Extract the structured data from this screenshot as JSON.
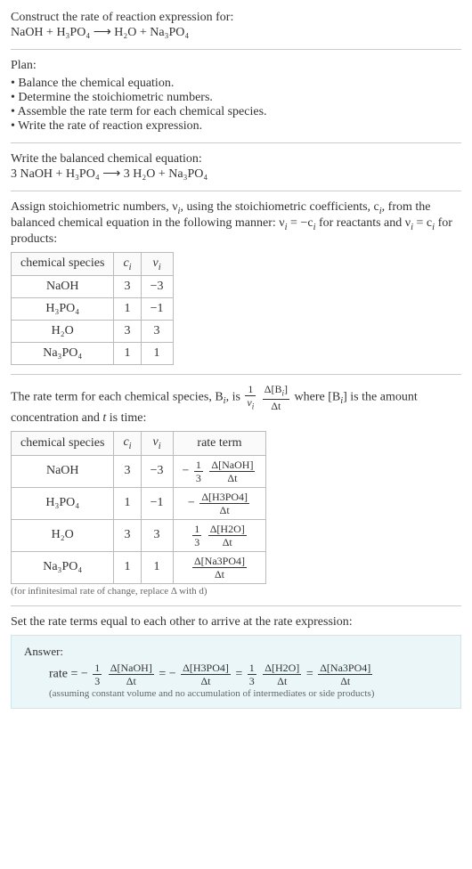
{
  "prompt": {
    "title": "Construct the rate of reaction expression for:",
    "equation": "NaOH + H₃PO₄  ⟶  H₂O + Na₃PO₄"
  },
  "plan": {
    "title": "Plan:",
    "items": [
      "Balance the chemical equation.",
      "Determine the stoichiometric numbers.",
      "Assemble the rate term for each chemical species.",
      "Write the rate of reaction expression."
    ]
  },
  "balanced": {
    "title": "Write the balanced chemical equation:",
    "equation": "3 NaOH + H₃PO₄  ⟶  3 H₂O + Na₃PO₄"
  },
  "stoich": {
    "intro_a": "Assign stoichiometric numbers, ν",
    "intro_b": ", using the stoichiometric coefficients, c",
    "intro_c": ", from the balanced chemical equation in the following manner: ν",
    "intro_d": " = −c",
    "intro_e": " for reactants and ν",
    "intro_f": " = c",
    "intro_g": " for products:",
    "headers": {
      "species": "chemical species",
      "ci": "c",
      "vi": "ν"
    },
    "rows": [
      {
        "species": "NaOH",
        "ci": "3",
        "vi": "−3"
      },
      {
        "species": "H₃PO₄",
        "ci": "1",
        "vi": "−1"
      },
      {
        "species": "H₂O",
        "ci": "3",
        "vi": "3"
      },
      {
        "species": "Na₃PO₄",
        "ci": "1",
        "vi": "1"
      }
    ]
  },
  "rateterms": {
    "intro_a": "The rate term for each chemical species, B",
    "intro_b": ", is ",
    "intro_c": " where [B",
    "intro_d": "] is the amount concentration and ",
    "intro_e": " is time:",
    "headers": {
      "species": "chemical species",
      "ci": "c",
      "vi": "ν",
      "rate": "rate term"
    },
    "rows": [
      {
        "species": "NaOH",
        "ci": "3",
        "vi": "−3",
        "rate_prefix": "−",
        "rate_coef_num": "1",
        "rate_coef_den": "3",
        "rate_frac_num": "Δ[NaOH]",
        "rate_frac_den": "Δt"
      },
      {
        "species": "H₃PO₄",
        "ci": "1",
        "vi": "−1",
        "rate_prefix": "−",
        "rate_coef_num": "",
        "rate_coef_den": "",
        "rate_frac_num": "Δ[H3PO4]",
        "rate_frac_den": "Δt"
      },
      {
        "species": "H₂O",
        "ci": "3",
        "vi": "3",
        "rate_prefix": "",
        "rate_coef_num": "1",
        "rate_coef_den": "3",
        "rate_frac_num": "Δ[H2O]",
        "rate_frac_den": "Δt"
      },
      {
        "species": "Na₃PO₄",
        "ci": "1",
        "vi": "1",
        "rate_prefix": "",
        "rate_coef_num": "",
        "rate_coef_den": "",
        "rate_frac_num": "Δ[Na3PO4]",
        "rate_frac_den": "Δt"
      }
    ],
    "caption": "(for infinitesimal rate of change, replace Δ with d)",
    "generic_frac1": {
      "num": "1",
      "den": "ν"
    },
    "generic_frac2": {
      "num": "Δ[B",
      "den": "Δt"
    }
  },
  "final": {
    "intro": "Set the rate terms equal to each other to arrive at the rate expression:",
    "answer_label": "Answer:",
    "rate_label": "rate = ",
    "terms": [
      {
        "prefix": "−",
        "coef_num": "1",
        "coef_den": "3",
        "frac_num": "Δ[NaOH]",
        "frac_den": "Δt"
      },
      {
        "prefix": "−",
        "coef_num": "",
        "coef_den": "",
        "frac_num": "Δ[H3PO4]",
        "frac_den": "Δt"
      },
      {
        "prefix": "",
        "coef_num": "1",
        "coef_den": "3",
        "frac_num": "Δ[H2O]",
        "frac_den": "Δt"
      },
      {
        "prefix": "",
        "coef_num": "",
        "coef_den": "",
        "frac_num": "Δ[Na3PO4]",
        "frac_den": "Δt"
      }
    ],
    "assumption": "(assuming constant volume and no accumulation of intermediates or side products)"
  },
  "misc": {
    "i": "i",
    "t": "t",
    "bracket_close": "]"
  }
}
